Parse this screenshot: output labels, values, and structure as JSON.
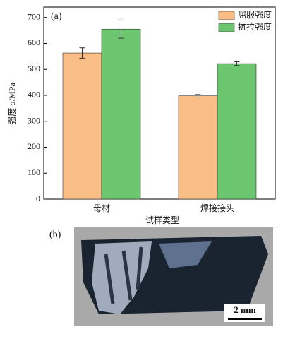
{
  "chart_data": {
    "type": "bar",
    "panel_label": "(a)",
    "y_label": "强度 σ/MPa",
    "x_label": "试样类型",
    "categories": [
      "母材",
      "焊接接头"
    ],
    "series": [
      {
        "name": "屈服强度",
        "color": "#f9be86",
        "values": [
          563,
          398
        ],
        "errors": [
          20,
          5
        ]
      },
      {
        "name": "抗拉强度",
        "color": "#6cc56f",
        "values": [
          655,
          522
        ],
        "errors": [
          35,
          7
        ]
      }
    ],
    "ylim": [
      0,
      740
    ],
    "yticks": [
      0,
      100,
      200,
      300,
      400,
      500,
      600,
      700
    ],
    "legend": "upper right"
  },
  "image_panel": {
    "label": "(b)",
    "scale_bar": "2 mm"
  }
}
